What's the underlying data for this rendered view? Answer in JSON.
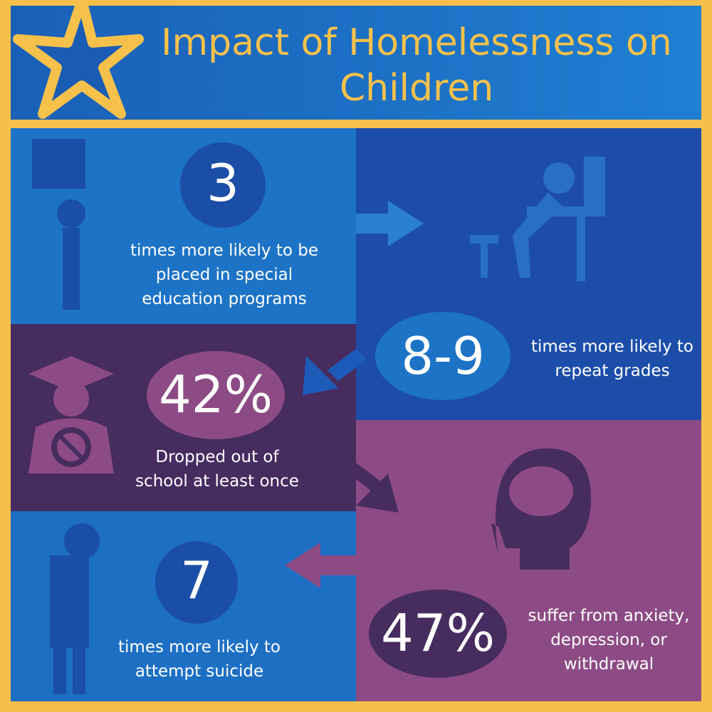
{
  "title": "Impact of Homelessness on Children",
  "stats": [
    {
      "figure": "3",
      "text": "times more likely to be placed in special education programs"
    },
    {
      "figure": "8-9",
      "text": "times more likely to repeat grades"
    },
    {
      "figure": "42%",
      "text": "Dropped out of school at least once"
    },
    {
      "figure": "47%",
      "text": "suffer from anxiety, depression, or withdrawal"
    },
    {
      "figure": "7",
      "text": "times more likely to attempt suicide"
    }
  ]
}
